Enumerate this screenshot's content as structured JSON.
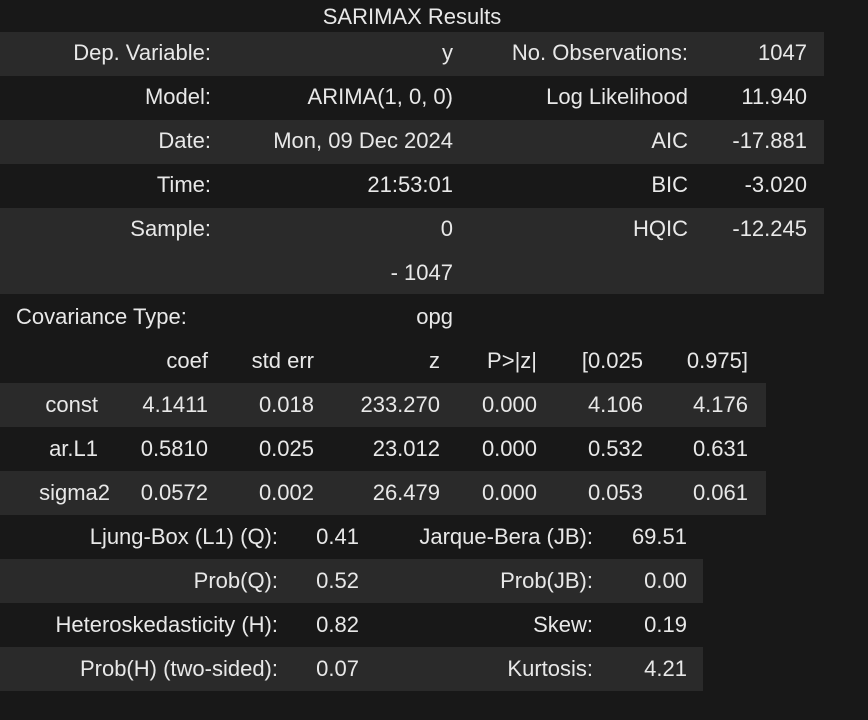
{
  "title": "SARIMAX Results",
  "summary": {
    "rows": [
      {
        "label1": "Dep. Variable:",
        "value1": "y",
        "label2": "No. Observations:",
        "value2": "1047"
      },
      {
        "label1": "Model:",
        "value1": "ARIMA(1, 0, 0)",
        "label2": "Log Likelihood",
        "value2": "11.940"
      },
      {
        "label1": "Date:",
        "value1": "Mon, 09 Dec 2024",
        "label2": "AIC",
        "value2": "-17.881"
      },
      {
        "label1": "Time:",
        "value1": "21:53:01",
        "label2": "BIC",
        "value2": "-3.020"
      },
      {
        "label1": "Sample:",
        "value1": "0",
        "label2": "HQIC",
        "value2": "-12.245"
      },
      {
        "label1": "",
        "value1": "- 1047",
        "label2": "",
        "value2": ""
      },
      {
        "label1": "Covariance Type:",
        "value1": "opg",
        "label2": "",
        "value2": ""
      }
    ]
  },
  "coefficients": {
    "headers": [
      "",
      "coef",
      "std err",
      "z",
      "P>|z|",
      "[0.025",
      "0.975]"
    ],
    "rows": [
      [
        "const",
        "4.1411",
        "0.018",
        "233.270",
        "0.000",
        "4.106",
        "4.176"
      ],
      [
        "ar.L1",
        "0.5810",
        "0.025",
        "23.012",
        "0.000",
        "0.532",
        "0.631"
      ],
      [
        "sigma2",
        "0.0572",
        "0.002",
        "26.479",
        "0.000",
        "0.053",
        "0.061"
      ]
    ]
  },
  "diagnostics": {
    "rows": [
      {
        "label1": "Ljung-Box (L1) (Q):",
        "value1": "0.41",
        "label2": "Jarque-Bera (JB):",
        "value2": "69.51"
      },
      {
        "label1": "Prob(Q):",
        "value1": "0.52",
        "label2": "Prob(JB):",
        "value2": "0.00"
      },
      {
        "label1": "Heteroskedasticity (H):",
        "value1": "0.82",
        "label2": "Skew:",
        "value2": "0.19"
      },
      {
        "label1": "Prob(H) (two-sided):",
        "value1": "0.07",
        "label2": "Kurtosis:",
        "value2": "4.21"
      }
    ]
  },
  "colors": {
    "background": "#181818",
    "stripe": "#2a2a2a",
    "text": "#e8e8e8"
  }
}
